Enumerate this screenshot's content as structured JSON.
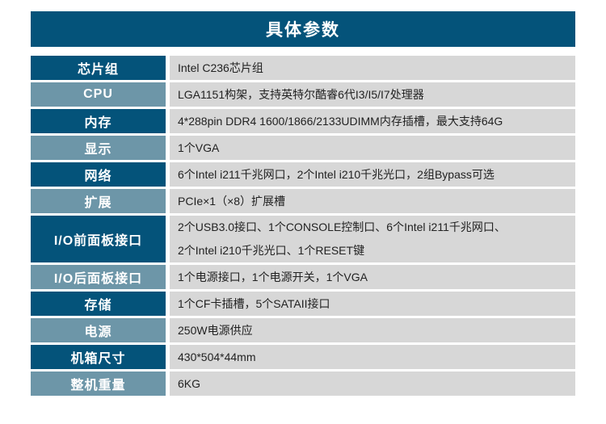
{
  "title": "具体参数",
  "colors": {
    "header_dark_blue": "#04537a",
    "label_light_blue": "#6d96a8",
    "value_cell_gray": "#d7d7d7",
    "value_text": "#222222",
    "label_text": "#ffffff"
  },
  "table": {
    "rows": [
      {
        "label": "芯片组",
        "value": "Intel C236芯片组"
      },
      {
        "label": "CPU",
        "value": "LGA1151构架，支持英特尔酷睿6代I3/I5/I7处理器"
      },
      {
        "label": "内存",
        "value": "4*288pin DDR4 1600/1866/2133UDIMM内存插槽，最大支持64G"
      },
      {
        "label": "显示",
        "value": "1个VGA"
      },
      {
        "label": "网络",
        "value": "6个Intel i211千兆网口，2个Intel i210千兆光口，2组Bypass可选"
      },
      {
        "label": "扩展",
        "value": "PCIe×1（×8）扩展槽"
      },
      {
        "label": "I/O前面板接口",
        "value_lines": [
          "2个USB3.0接口、1个CONSOLE控制口、6个Intel i211千兆网口、",
          "2个Intel i210千兆光口、1个RESET键"
        ]
      },
      {
        "label": "I/O后面板接口",
        "value": "1个电源接口，1个电源开关，1个VGA"
      },
      {
        "label": "存储",
        "value": "1个CF卡插槽，5个SATAII接口"
      },
      {
        "label": "电源",
        "value": "250W电源供应"
      },
      {
        "label": "机箱尺寸",
        "value": "430*504*44mm"
      },
      {
        "label": "整机重量",
        "value": "6KG"
      }
    ]
  }
}
